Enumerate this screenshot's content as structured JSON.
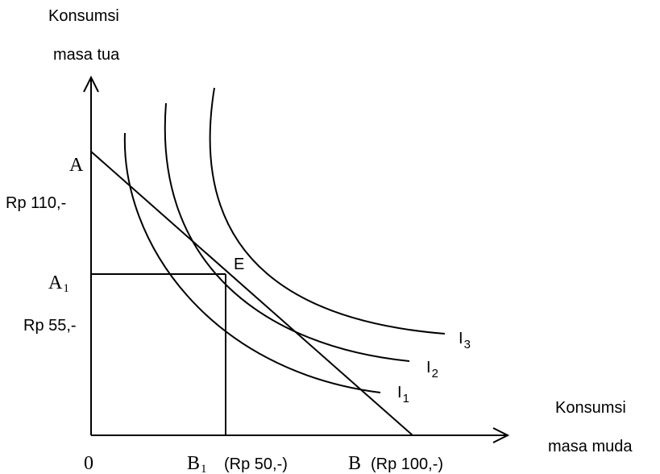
{
  "axes": {
    "y_label_line1": "Konsumsi",
    "y_label_line2": "masa tua",
    "x_label_line1": "Konsumsi",
    "x_label_line2": "masa muda",
    "origin": "0"
  },
  "points": {
    "A": "A",
    "A1_base": "A",
    "A1_sub": "1",
    "E": "E",
    "B1_base": "B",
    "B1_sub": "1",
    "B": "B"
  },
  "values": {
    "y_high": "Rp 110,-",
    "y_mid": "Rp 55,-",
    "B1_value": "(Rp 50,-)",
    "B_value": "(Rp 100,-)"
  },
  "curves": [
    {
      "base": "I",
      "sub": "1"
    },
    {
      "base": "I",
      "sub": "2"
    },
    {
      "base": "I",
      "sub": "3"
    }
  ]
}
